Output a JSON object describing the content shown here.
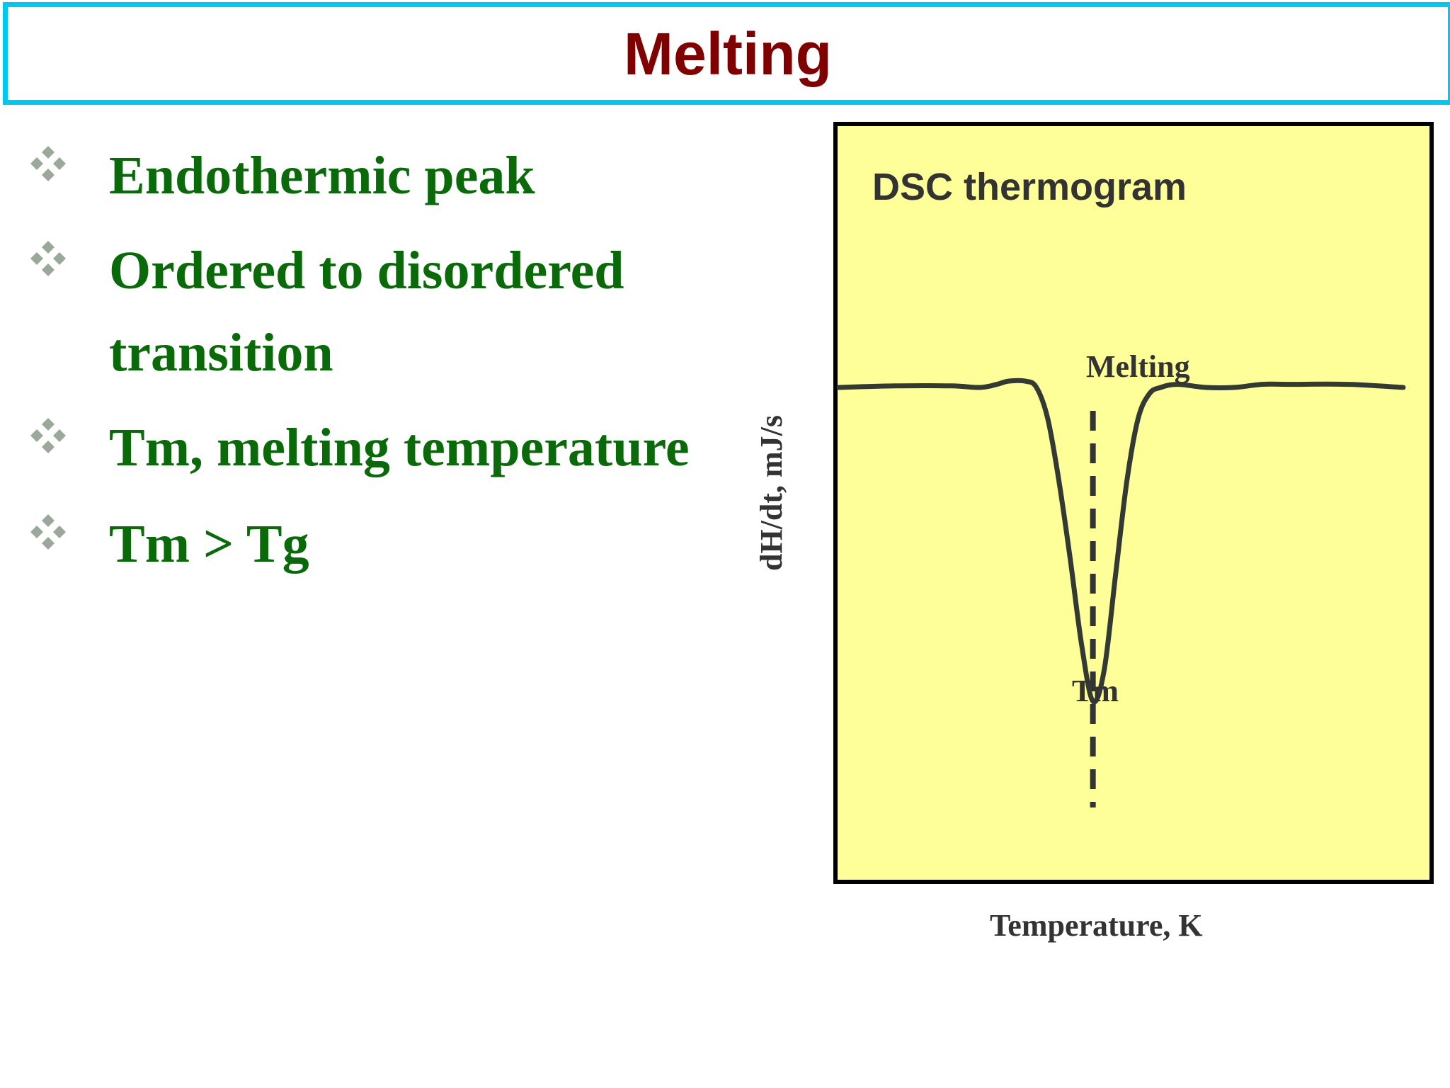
{
  "slide": {
    "title": "Melting",
    "bullets": [
      "Endothermic peak",
      "Ordered to disordered",
      "transition",
      "Tm, melting temperature",
      "Tm > Tg"
    ]
  },
  "colors": {
    "title": "#800000",
    "title_border": "#00c8f0",
    "bullet_text": "#0a6a0a",
    "bullet_icon": "#9aa89a",
    "chart_background": "#ffff99",
    "chart_line": "#333a33"
  },
  "icons": {
    "bullet": "four-diamond-bullet-icon"
  },
  "chart_data": {
    "type": "line",
    "title": "DSC thermogram",
    "xlabel": "Temperature, K",
    "ylabel": "dH/dt, mJ/s",
    "grid": false,
    "annotations": [
      {
        "text": "Melting"
      },
      {
        "text": "Tm"
      }
    ],
    "series": [
      {
        "x": [
          0,
          0.1,
          0.2,
          0.25,
          0.28,
          0.3,
          0.33,
          0.35,
          0.37,
          0.39,
          0.41,
          0.43,
          0.45,
          0.47,
          0.49,
          0.51,
          0.53,
          0.55,
          0.57,
          0.6,
          0.65,
          0.7,
          0.75,
          0.8,
          0.9,
          1.0
        ],
        "y": [
          0.0,
          0.005,
          0.005,
          0.0,
          0.01,
          0.02,
          0.02,
          0.0,
          -0.1,
          -0.3,
          -0.55,
          -0.82,
          -1.0,
          -0.9,
          -0.6,
          -0.3,
          -0.1,
          -0.02,
          0.0,
          0.01,
          0.0,
          0.0,
          0.01,
          0.01,
          0.01,
          0.0
        ]
      }
    ],
    "vertical_marker": {
      "x": 0.45,
      "style": "dashed"
    }
  }
}
